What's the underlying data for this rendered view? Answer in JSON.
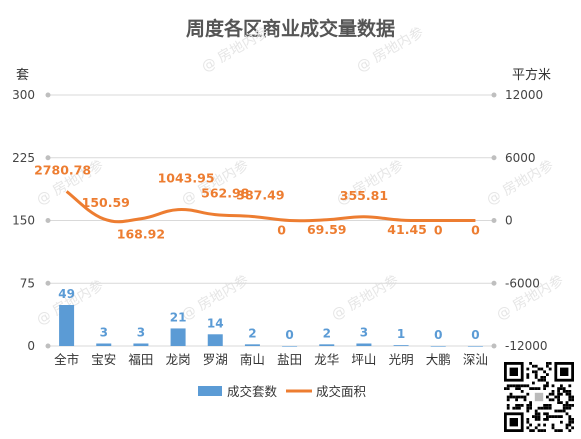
{
  "chart_data": {
    "type": "bar+line",
    "title": "周度各区商业成交量数据",
    "left_axis_label": "套",
    "right_axis_label": "平方米",
    "left_ylim": [
      0,
      300
    ],
    "left_ticks": [
      "0",
      "75",
      "150",
      "225",
      "300"
    ],
    "right_ylim": [
      -12000,
      12000
    ],
    "right_ticks": [
      "-12000",
      "-6000",
      "0",
      "6000",
      "12000"
    ],
    "categories": [
      "全市",
      "宝安",
      "福田",
      "龙岗",
      "罗湖",
      "南山",
      "盐田",
      "龙华",
      "坪山",
      "光明",
      "大鹏",
      "深汕"
    ],
    "series": [
      {
        "name": "成交套数",
        "type": "bar",
        "axis": "left",
        "color": "#5b9bd5",
        "values": [
          49,
          3,
          3,
          21,
          14,
          2,
          0,
          2,
          3,
          1,
          0,
          0
        ],
        "labels": [
          "49",
          "3",
          "3",
          "21",
          "14",
          "2",
          "0",
          "2",
          "3",
          "1",
          "0",
          "0"
        ]
      },
      {
        "name": "成交面积",
        "type": "line",
        "axis": "right",
        "color": "#ed7d31",
        "values": [
          2780.78,
          150.59,
          168.92,
          1043.95,
          562.98,
          387.49,
          0,
          69.59,
          355.81,
          41.45,
          0,
          0
        ],
        "labels": [
          "2780.78",
          "150.59",
          "168.92",
          "1043.95",
          "562.98",
          "387.49",
          "0",
          "69.59",
          "355.81",
          "41.45",
          "0",
          "0"
        ]
      }
    ],
    "grid": true,
    "legend_position": "bottom"
  },
  "colors": {
    "title": "#555555",
    "grid": "#d9d9d9",
    "bar_label": "#5b9bd5",
    "line_label": "#ed7d31"
  },
  "watermark": "@ 房地内参"
}
